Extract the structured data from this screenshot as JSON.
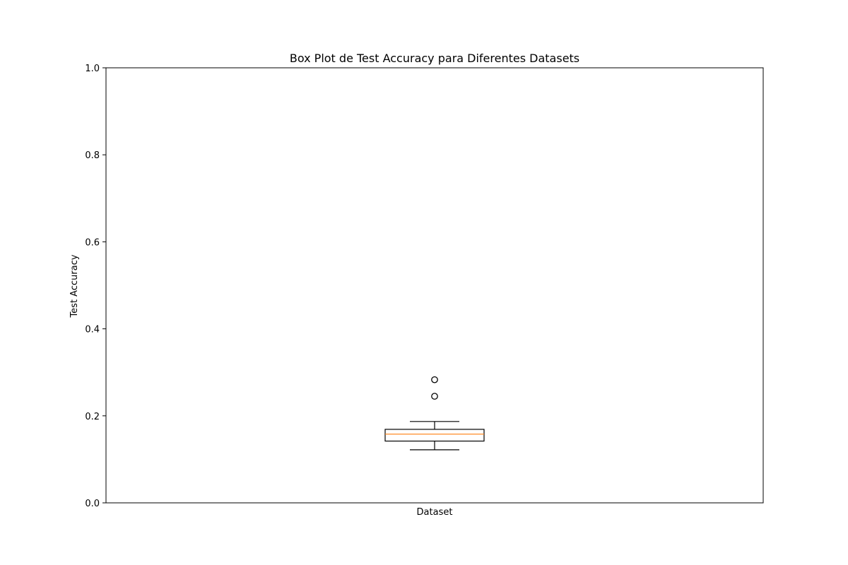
{
  "chart_data": {
    "type": "box",
    "title": "Box Plot de Test Accuracy para Diferentes Datasets",
    "xlabel": "Dataset",
    "ylabel": "Test Accuracy",
    "ylim": [
      0,
      1
    ],
    "yticks": [
      "0.0",
      "0.2",
      "0.4",
      "0.6",
      "0.8",
      "1.0"
    ],
    "grid": false,
    "series": [
      {
        "whisker_low": 0.122,
        "q1": 0.142,
        "median": 0.158,
        "q3": 0.169,
        "whisker_high": 0.187,
        "outliers": [
          0.245,
          0.283
        ]
      }
    ],
    "colors": {
      "box": "#000000",
      "median": "#ff7f0e",
      "outlier_edge": "#000000"
    }
  }
}
